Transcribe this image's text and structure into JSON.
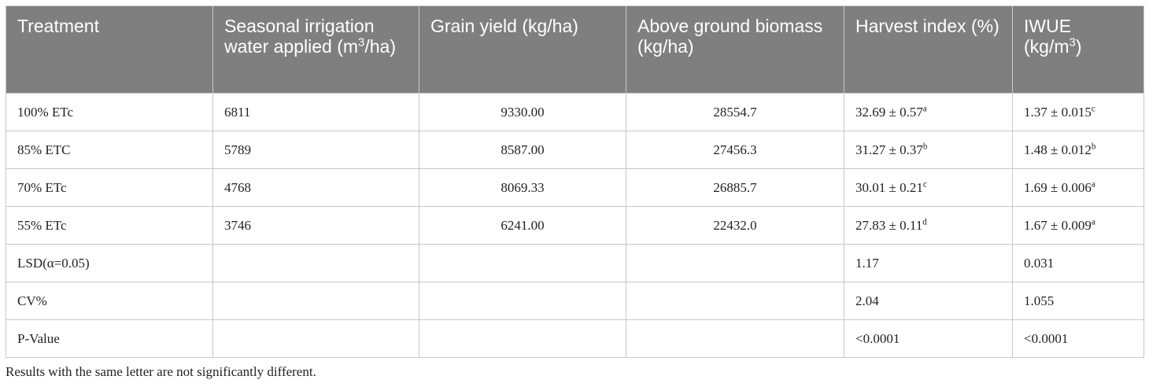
{
  "table": {
    "header": [
      [
        {
          "text": "Treatment"
        }
      ],
      [
        {
          "text": "Seasonal irrigation water applied (m"
        },
        {
          "sup": "3"
        },
        {
          "text": "/ha)"
        }
      ],
      [
        {
          "text": "Grain yield (kg/ha)"
        }
      ],
      [
        {
          "text": "Above ground biomass (kg/ha)"
        }
      ],
      [
        {
          "text": "Harvest index (%)"
        }
      ],
      [
        {
          "text": "IWUE (kg/m"
        },
        {
          "sup": "3"
        },
        {
          "text": ")"
        }
      ]
    ],
    "rows": [
      [
        "100% ETc",
        "6811",
        "9330.00",
        "28554.7",
        {
          "text": "32.69 ± 0.57",
          "sup": "a"
        },
        {
          "text": "1.37 ± 0.015",
          "sup": "c"
        }
      ],
      [
        "85% ETC",
        "5789",
        "8587.00",
        "27456.3",
        {
          "text": "31.27 ± 0.37",
          "sup": "b"
        },
        {
          "text": "1.48 ± 0.012",
          "sup": "b"
        }
      ],
      [
        "70% ETc",
        "4768",
        "8069.33",
        "26885.7",
        {
          "text": "30.01 ± 0.21",
          "sup": "c"
        },
        {
          "text": "1.69 ± 0.006",
          "sup": "a"
        }
      ],
      [
        "55% ETc",
        "3746",
        "6241.00",
        "22432.0",
        {
          "text": "27.83 ± 0.11",
          "sup": "d"
        },
        {
          "text": "1.67 ± 0.009",
          "sup": "a"
        }
      ],
      [
        "LSD(α=0.05)",
        null,
        null,
        null,
        "1.17",
        "0.031"
      ],
      [
        "CV%",
        null,
        null,
        null,
        "2.04",
        "1.055"
      ],
      [
        "P-Value",
        null,
        null,
        null,
        "<0.0001",
        "<0.0001"
      ]
    ],
    "footnote": "Results with the same letter are not significantly different."
  }
}
